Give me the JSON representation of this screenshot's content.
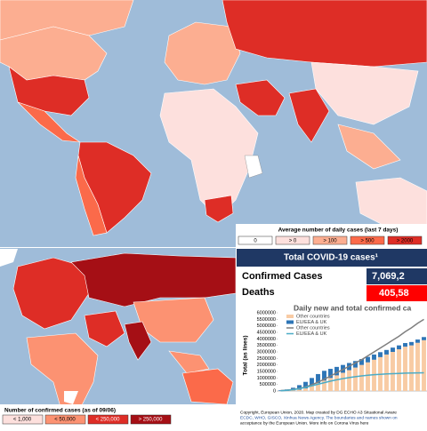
{
  "top_map": {
    "legend": {
      "title": "Average number of daily cases (last 7 days)",
      "items": [
        {
          "label": "0",
          "color": "#ffffff"
        },
        {
          "label": "> 0",
          "color": "#fde0dd"
        },
        {
          "label": "> 100",
          "color": "#fcae91"
        },
        {
          "label": "> 500",
          "color": "#fb6a4a"
        },
        {
          "label": "> 2000",
          "color": "#de2d26"
        }
      ]
    }
  },
  "bottom_map": {
    "legend": {
      "title": "Number of confirmed cases (as of 09/06)",
      "items": [
        {
          "label": "< 1,000",
          "color": "#fde0dd"
        },
        {
          "label": "< 50,000",
          "color": "#fc9272"
        },
        {
          "label": "< 250,000",
          "color": "#de2d26"
        },
        {
          "label": "> 250,000",
          "color": "#a50f15"
        }
      ]
    }
  },
  "panel": {
    "title": "Total COVID-19 cases¹",
    "confirmed_label": "Confirmed Cases",
    "confirmed_value": "7,069,2",
    "deaths_label": "Deaths",
    "deaths_value": "405,58",
    "footer": [
      "Copyright, European Union, 2020. Map created by DG ECHO A3 Situational Aware",
      "ECDC, WHO, GISCO, Xinhua News Agency. The boundaries and names shown on",
      "acceptance by the European Union. More info on Corona Virus here"
    ]
  },
  "chart_data": {
    "type": "bar",
    "title": "Daily new and total confirmed ca",
    "ylabel": "Total (as lines)",
    "ylim": [
      0,
      6000000
    ],
    "yticks": [
      0,
      500000,
      1000000,
      1500000,
      2000000,
      2500000,
      3000000,
      3500000,
      4000000,
      4500000,
      5000000,
      5500000,
      6000000
    ],
    "categories": [
      null,
      null,
      null,
      null,
      null,
      null,
      null,
      null,
      null,
      null,
      null,
      null,
      null,
      null,
      null,
      null,
      null,
      null,
      null,
      null,
      null,
      null,
      null,
      null
    ],
    "series": [
      {
        "name": "Other countries",
        "color": "#f8cba4",
        "kind": "bar",
        "values": [
          0,
          20000,
          50000,
          100000,
          200000,
          400000,
          600000,
          800000,
          1000000,
          1200000,
          1400000,
          1600000,
          1800000,
          2000000,
          2200000,
          2400000,
          2600000,
          2800000,
          3000000,
          3200000,
          3400000,
          3500000,
          3700000,
          3900000
        ]
      },
      {
        "name": "EU/EEA & UK",
        "color": "#2e75b6",
        "kind": "bar",
        "values": [
          50000,
          100000,
          200000,
          350000,
          500000,
          600000,
          700000,
          750000,
          700000,
          650000,
          600000,
          550000,
          500000,
          450000,
          420000,
          400000,
          380000,
          350000,
          330000,
          300000,
          280000,
          260000,
          250000,
          240000
        ]
      },
      {
        "name": "Other countries",
        "color": "#7f7f7f",
        "kind": "line",
        "values": [
          30000,
          60000,
          120000,
          200000,
          320000,
          480000,
          680000,
          900000,
          1150000,
          1400000,
          1650000,
          1900000,
          2150000,
          2400000,
          2700000,
          3000000,
          3300000,
          3600000,
          3900000,
          4200000,
          4550000,
          4850000,
          5200000,
          5500000
        ]
      },
      {
        "name": "EU/EEA & UK",
        "color": "#4bacc6",
        "kind": "line",
        "values": [
          20000,
          50000,
          100000,
          180000,
          280000,
          400000,
          520000,
          640000,
          760000,
          860000,
          950000,
          1030000,
          1100000,
          1160000,
          1210000,
          1250000,
          1280000,
          1310000,
          1330000,
          1350000,
          1370000,
          1380000,
          1390000,
          1400000
        ]
      }
    ]
  }
}
